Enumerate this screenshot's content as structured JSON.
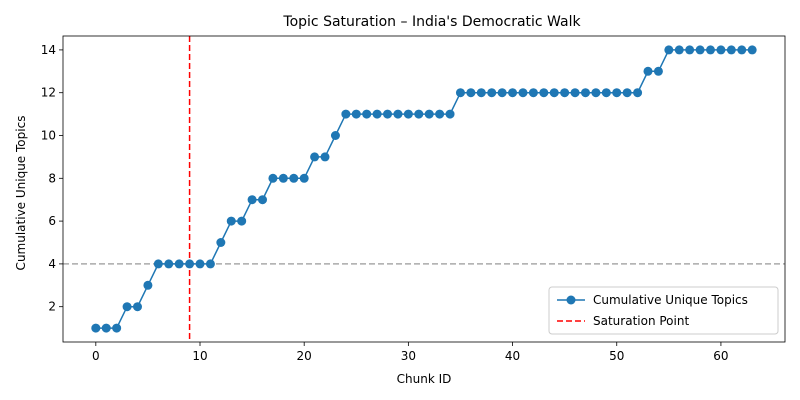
{
  "chart_data": {
    "type": "line",
    "title": "Topic Saturation – India's Democratic Walk",
    "xlabel": "Chunk ID",
    "ylabel": "Cumulative Unique Topics",
    "xlim": [
      -3.15,
      66.15
    ],
    "ylim": [
      0.35,
      14.65
    ],
    "xticks": [
      "0",
      "10",
      "20",
      "30",
      "40",
      "50",
      "60"
    ],
    "yticks": [
      "2",
      "4",
      "6",
      "8",
      "10",
      "12",
      "14"
    ],
    "grid": false,
    "legend_position": "lower-right",
    "series": [
      {
        "name": "Cumulative Unique Topics",
        "color": "#1f77b4",
        "marker": "circle",
        "x": [
          0,
          1,
          2,
          3,
          4,
          5,
          6,
          7,
          8,
          9,
          10,
          11,
          12,
          13,
          14,
          15,
          16,
          17,
          18,
          19,
          20,
          21,
          22,
          23,
          24,
          25,
          26,
          27,
          28,
          29,
          30,
          31,
          32,
          33,
          34,
          35,
          36,
          37,
          38,
          39,
          40,
          41,
          42,
          43,
          44,
          45,
          46,
          47,
          48,
          49,
          50,
          51,
          52,
          53,
          54,
          55,
          56,
          57,
          58,
          59,
          60,
          61,
          62,
          63
        ],
        "values": [
          1,
          1,
          1,
          2,
          2,
          3,
          4,
          4,
          4,
          4,
          4,
          4,
          5,
          6,
          6,
          7,
          7,
          8,
          8,
          8,
          8,
          9,
          9,
          10,
          11,
          11,
          11,
          11,
          11,
          11,
          11,
          11,
          11,
          11,
          11,
          12,
          12,
          12,
          12,
          12,
          12,
          12,
          12,
          12,
          12,
          12,
          12,
          12,
          12,
          12,
          12,
          12,
          12,
          13,
          13,
          14,
          14,
          14,
          14,
          14,
          14,
          14,
          14,
          14
        ]
      }
    ],
    "reference_lines": [
      {
        "name": "Saturation Point",
        "orientation": "vertical",
        "value": 9,
        "color": "#ff0000",
        "style": "dashed"
      },
      {
        "name": "",
        "orientation": "horizontal",
        "value": 4,
        "color": "#aaaaaa",
        "style": "dashed"
      }
    ]
  }
}
